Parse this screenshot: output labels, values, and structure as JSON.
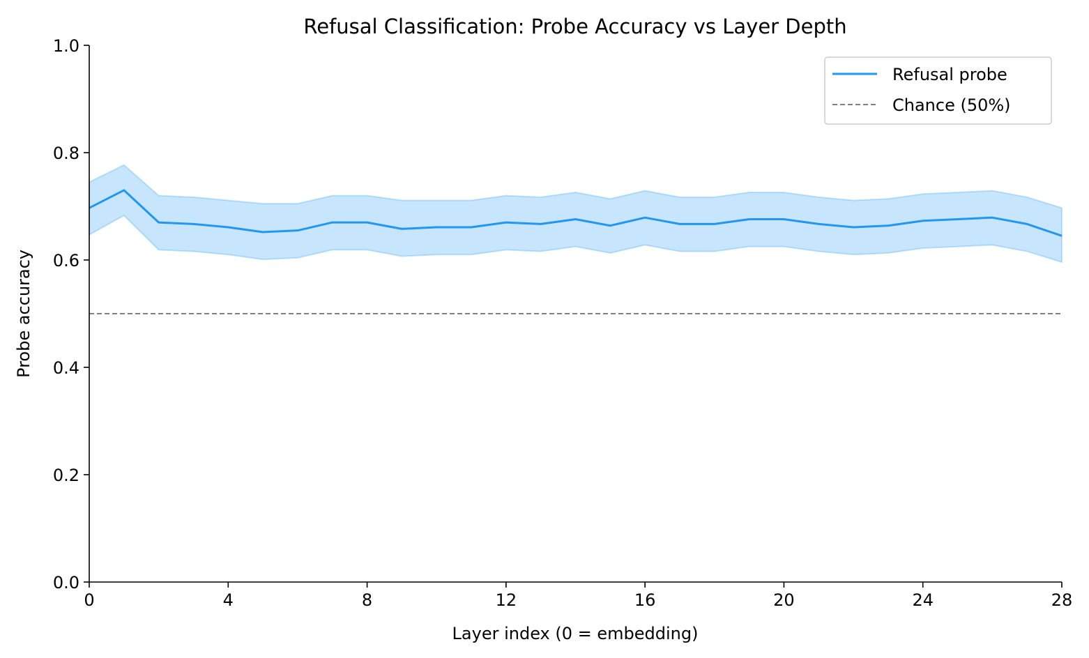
{
  "chart_data": {
    "type": "line",
    "title": "Refusal Classification: Probe Accuracy vs Layer Depth",
    "xlabel": "Layer index (0 = embedding)",
    "ylabel": "Probe accuracy",
    "xlim": [
      0,
      28
    ],
    "ylim": [
      0.0,
      1.0
    ],
    "x_ticks": [
      0,
      4,
      8,
      12,
      16,
      20,
      24,
      28
    ],
    "y_ticks": [
      0.0,
      0.2,
      0.4,
      0.6,
      0.8,
      1.0
    ],
    "x_tick_labels": [
      "0",
      "4",
      "8",
      "12",
      "16",
      "20",
      "24",
      "28"
    ],
    "y_tick_labels": [
      "0.0",
      "0.2",
      "0.4",
      "0.6",
      "0.8",
      "1.0"
    ],
    "grid": false,
    "legend_position": "top-right",
    "x": [
      0,
      1,
      2,
      3,
      4,
      5,
      6,
      7,
      8,
      9,
      10,
      11,
      12,
      13,
      14,
      15,
      16,
      17,
      18,
      19,
      20,
      21,
      22,
      23,
      24,
      25,
      26,
      27,
      28
    ],
    "series": [
      {
        "name": "Refusal probe",
        "color": "#2196F3",
        "values": [
          0.697,
          0.73,
          0.67,
          0.667,
          0.661,
          0.652,
          0.655,
          0.67,
          0.67,
          0.658,
          0.661,
          0.661,
          0.67,
          0.667,
          0.676,
          0.664,
          0.679,
          0.667,
          0.667,
          0.676,
          0.676,
          0.667,
          0.661,
          0.664,
          0.673,
          0.676,
          0.679,
          0.667,
          0.645
        ],
        "lower": [
          0.647,
          0.683,
          0.619,
          0.616,
          0.61,
          0.601,
          0.604,
          0.619,
          0.619,
          0.607,
          0.61,
          0.61,
          0.619,
          0.616,
          0.625,
          0.613,
          0.628,
          0.616,
          0.616,
          0.625,
          0.625,
          0.616,
          0.61,
          0.613,
          0.622,
          0.625,
          0.628,
          0.616,
          0.596
        ],
        "upper": [
          0.745,
          0.777,
          0.72,
          0.717,
          0.711,
          0.705,
          0.705,
          0.72,
          0.72,
          0.711,
          0.711,
          0.711,
          0.72,
          0.717,
          0.726,
          0.714,
          0.729,
          0.717,
          0.717,
          0.726,
          0.726,
          0.717,
          0.711,
          0.714,
          0.723,
          0.726,
          0.729,
          0.717,
          0.697
        ]
      },
      {
        "name": "Chance (50%)",
        "color": "#808080",
        "style": "dashed",
        "constant": 0.5
      }
    ]
  }
}
